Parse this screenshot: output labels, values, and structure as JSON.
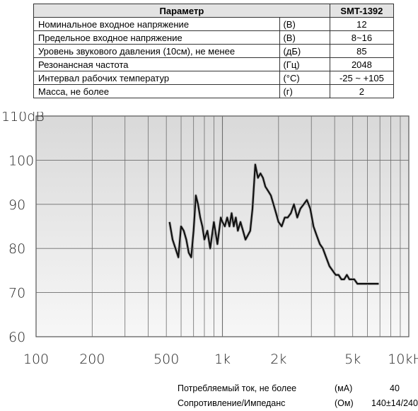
{
  "table": {
    "header": {
      "param": "Параметр",
      "model": "SMT-1392"
    },
    "rows": [
      {
        "name": "Номинальное входное напряжение",
        "unit": "(В)",
        "value": "12"
      },
      {
        "name": "Предельное входное напряжение",
        "unit": "(В)",
        "value": "8~16"
      },
      {
        "name": "Уровень звукового давления (10см), не менее",
        "unit": "(дБ)",
        "value": "85"
      },
      {
        "name": "Резонансная частота",
        "unit": "(Гц)",
        "value": "2048"
      },
      {
        "name": "Интервал рабочих температур",
        "unit": "(°С)",
        "value": "-25 ~ +105"
      },
      {
        "name": "Масса, не более",
        "unit": "(г)",
        "value": "2"
      }
    ]
  },
  "chart_data": {
    "type": "line",
    "xscale": "log",
    "xlim": [
      100,
      10000
    ],
    "ylim": [
      60,
      110
    ],
    "y_ticks": [
      "110dB",
      "100",
      "90",
      "80",
      "70",
      "60"
    ],
    "x_ticks": [
      "100",
      "200",
      "500",
      "1k",
      "2k",
      "5k",
      "10kHz"
    ],
    "grid": true,
    "series": [
      {
        "x": [
          520,
          540,
          560,
          580,
          600,
          620,
          640,
          660,
          680,
          700,
          720,
          740,
          760,
          780,
          800,
          830,
          860,
          900,
          940,
          980,
          1000,
          1030,
          1060,
          1090,
          1120,
          1150,
          1180,
          1210,
          1250,
          1290,
          1330,
          1370,
          1410,
          1450,
          1500,
          1550,
          1600,
          1650,
          1700,
          1760,
          1820,
          1880,
          1940,
          2000,
          2080,
          2160,
          2240,
          2330,
          2420,
          2520,
          2620,
          2730,
          2840,
          2960,
          3080,
          3200,
          3330,
          3460,
          3600,
          3750,
          3900,
          4050,
          4200,
          4350,
          4500,
          4650,
          4800,
          4950,
          5100,
          5300,
          5500,
          5700,
          5900,
          6100,
          6300,
          6500,
          6700,
          6900
        ],
        "y": [
          86,
          82,
          80,
          78,
          85,
          84,
          82,
          79,
          78,
          84,
          92,
          90,
          87,
          85,
          82,
          84,
          80,
          86,
          81,
          87,
          86,
          85,
          87,
          85,
          88,
          85,
          87,
          84,
          86,
          84,
          82,
          83,
          84,
          89,
          99,
          96,
          97,
          96,
          94,
          93,
          92,
          90,
          88,
          86,
          85,
          87,
          87,
          88,
          90,
          87,
          89,
          90,
          91,
          89,
          85,
          83,
          81,
          80,
          78,
          76,
          75,
          74,
          74,
          73,
          73,
          74,
          73,
          73,
          73,
          72,
          72,
          72,
          72,
          72,
          72,
          72,
          72,
          72
        ]
      }
    ]
  },
  "footer": [
    {
      "label": "Потребляемый ток, не более",
      "unit": "(мА)",
      "value": "40"
    },
    {
      "label": "Сопротивление/Импеданс",
      "unit": "(Ом)",
      "value": "140±14/240"
    }
  ]
}
